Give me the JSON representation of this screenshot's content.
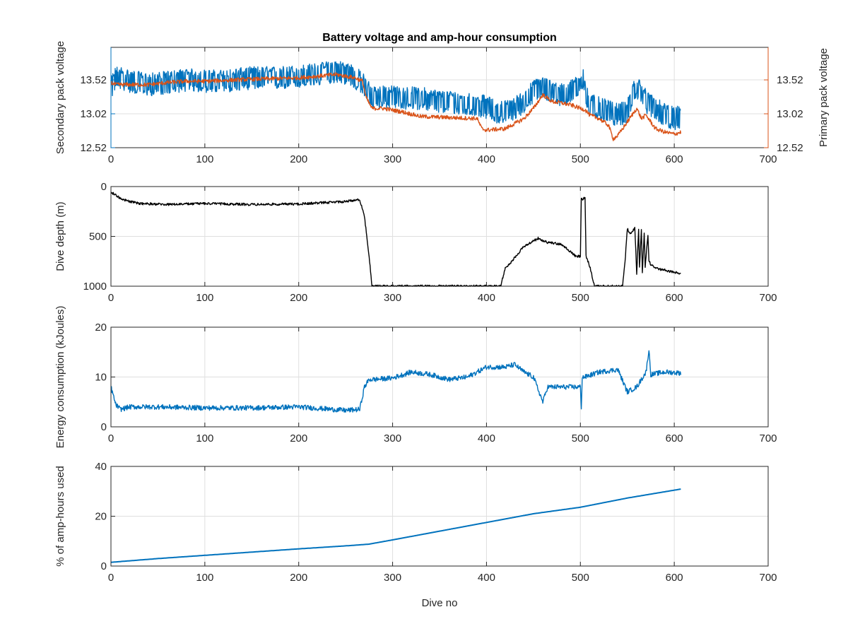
{
  "chart_data": [
    {
      "type": "line",
      "title": "Battery voltage and amp-hour consumption",
      "xlabel": "",
      "ylabel": "Secondary pack voltage",
      "ylabel_right": "Primary pack voltage",
      "xlim": [
        0,
        700
      ],
      "ylim": [
        12.52,
        14.0
      ],
      "xticks": [
        0,
        100,
        200,
        300,
        400,
        500,
        600,
        700
      ],
      "yticks": [
        12.52,
        13.02,
        13.52
      ],
      "ytick_labels": [
        "12.52",
        "13.02",
        "13.52"
      ],
      "ytick_labels_right": [
        "12.52",
        "13.02",
        "13.52"
      ],
      "grid": true,
      "series": [
        {
          "name": "Secondary pack voltage",
          "axis": "left",
          "color": "#0072bd",
          "noise": 0.17,
          "x": [
            0,
            5,
            10,
            20,
            40,
            60,
            80,
            100,
            120,
            150,
            180,
            200,
            220,
            240,
            255,
            265,
            272,
            278,
            290,
            310,
            330,
            350,
            370,
            390,
            400,
            410,
            420,
            430,
            440,
            450,
            460,
            470,
            480,
            490,
            500,
            503,
            506,
            510,
            520,
            530,
            540,
            550,
            555,
            560,
            565,
            570,
            580,
            590,
            600,
            607
          ],
          "y": [
            13.4,
            13.55,
            13.55,
            13.5,
            13.45,
            13.48,
            13.52,
            13.5,
            13.5,
            13.55,
            13.55,
            13.57,
            13.6,
            13.65,
            13.6,
            13.5,
            13.4,
            13.25,
            13.28,
            13.25,
            13.25,
            13.2,
            13.18,
            13.15,
            13.12,
            13.05,
            13.05,
            13.1,
            13.2,
            13.35,
            13.4,
            13.35,
            13.3,
            13.35,
            13.45,
            13.55,
            13.3,
            13.15,
            13.1,
            13.05,
            13.0,
            13.05,
            13.3,
            13.4,
            13.35,
            13.2,
            13.1,
            13.0,
            12.95,
            12.98
          ]
        },
        {
          "name": "Primary pack voltage",
          "axis": "right",
          "color": "#d95319",
          "noise": 0.03,
          "x": [
            0,
            5,
            20,
            40,
            60,
            80,
            100,
            150,
            200,
            240,
            260,
            268,
            272,
            278,
            290,
            310,
            330,
            350,
            370,
            390,
            395,
            400,
            420,
            440,
            450,
            460,
            470,
            480,
            490,
            500,
            505,
            510,
            520,
            530,
            535,
            540,
            550,
            560,
            565,
            570,
            580,
            590,
            600,
            607
          ],
          "y": [
            13.48,
            13.45,
            13.45,
            13.45,
            13.48,
            13.5,
            13.5,
            13.53,
            13.55,
            13.6,
            13.55,
            13.5,
            13.25,
            13.1,
            13.1,
            13.05,
            12.98,
            12.97,
            12.96,
            12.95,
            12.8,
            12.78,
            12.8,
            12.95,
            13.1,
            13.3,
            13.2,
            13.18,
            13.15,
            13.1,
            13.08,
            13.0,
            12.95,
            12.85,
            12.65,
            12.7,
            12.9,
            13.1,
            12.95,
            13.0,
            12.8,
            12.75,
            12.72,
            12.75
          ]
        }
      ]
    },
    {
      "type": "line",
      "title": "",
      "xlabel": "",
      "ylabel": "Dive depth (m)",
      "xlim": [
        0,
        700
      ],
      "ylim": [
        0,
        1000
      ],
      "y_reversed": true,
      "xticks": [
        0,
        100,
        200,
        300,
        400,
        500,
        600,
        700
      ],
      "yticks": [
        0,
        500,
        1000
      ],
      "ytick_labels": [
        "0",
        "500",
        "1000"
      ],
      "grid": true,
      "series": [
        {
          "color": "#000000",
          "noise": 12,
          "x": [
            0,
            5,
            10,
            20,
            30,
            60,
            100,
            150,
            200,
            250,
            265,
            270,
            275,
            278,
            280,
            300,
            350,
            400,
            415,
            420,
            425,
            440,
            455,
            465,
            480,
            495,
            500,
            501,
            503,
            505,
            506,
            510,
            515,
            545,
            548,
            550,
            553,
            555,
            558,
            560,
            562,
            563,
            565,
            566,
            568,
            569,
            572,
            573,
            575,
            580,
            590,
            600,
            607
          ],
          "y": [
            60,
            80,
            120,
            150,
            170,
            180,
            170,
            180,
            175,
            150,
            130,
            300,
            700,
            1000,
            1000,
            1000,
            1000,
            1000,
            1000,
            820,
            770,
            600,
            520,
            560,
            580,
            700,
            700,
            120,
            130,
            110,
            700,
            800,
            1000,
            1000,
            700,
            420,
            480,
            450,
            420,
            870,
            430,
            800,
            420,
            870,
            470,
            800,
            490,
            750,
            780,
            820,
            840,
            860,
            870
          ]
        }
      ]
    },
    {
      "type": "line",
      "title": "",
      "xlabel": "",
      "ylabel": "Energy consumption (kJoules)",
      "xlim": [
        0,
        700
      ],
      "ylim": [
        0,
        20
      ],
      "xticks": [
        0,
        100,
        200,
        300,
        400,
        500,
        600,
        700
      ],
      "yticks": [
        0,
        10,
        20
      ],
      "ytick_labels": [
        "0",
        "10",
        "20"
      ],
      "grid": true,
      "series": [
        {
          "color": "#0072bd",
          "noise": 0.5,
          "x": [
            0,
            5,
            10,
            20,
            50,
            100,
            150,
            200,
            250,
            265,
            270,
            275,
            280,
            300,
            320,
            340,
            360,
            380,
            400,
            420,
            430,
            440,
            450,
            458,
            460,
            465,
            480,
            500,
            501,
            502,
            505,
            520,
            540,
            550,
            560,
            570,
            573,
            575,
            590,
            607
          ],
          "y": [
            8,
            4.5,
            3.5,
            4,
            4,
            3.8,
            3.8,
            4,
            3.3,
            3.5,
            8,
            9.5,
            9.5,
            9.8,
            11,
            10.5,
            9.5,
            10,
            12,
            12,
            12.5,
            11,
            10,
            6,
            5,
            8,
            8,
            8,
            4,
            10,
            10,
            11,
            11.5,
            7,
            8,
            11,
            15.5,
            10.5,
            11,
            10.8
          ]
        }
      ]
    },
    {
      "type": "line",
      "title": "",
      "xlabel": "Dive no",
      "ylabel": "% of amp-hours used",
      "xlim": [
        0,
        700
      ],
      "ylim": [
        0,
        40
      ],
      "xticks": [
        0,
        100,
        200,
        300,
        400,
        500,
        600,
        700
      ],
      "yticks": [
        0,
        20,
        40
      ],
      "ytick_labels": [
        "0",
        "20",
        "40"
      ],
      "grid": true,
      "series": [
        {
          "color": "#0072bd",
          "noise": 0,
          "x": [
            0,
            50,
            100,
            150,
            200,
            250,
            275,
            300,
            350,
            400,
            450,
            500,
            550,
            607
          ],
          "y": [
            1.5,
            3,
            4.3,
            5.6,
            6.9,
            8.1,
            8.8,
            10.5,
            14,
            17.5,
            21,
            23.6,
            27.3,
            30.9
          ]
        }
      ]
    }
  ]
}
